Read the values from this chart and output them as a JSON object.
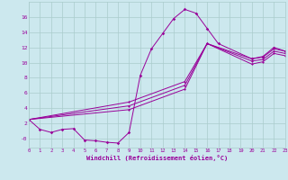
{
  "background_color": "#cce8ee",
  "grid_color": "#aacccc",
  "line_color": "#990099",
  "xlabel": "Windchill (Refroidissement éolien,°C)",
  "xlim": [
    0,
    23
  ],
  "ylim": [
    -1.2,
    18
  ],
  "ytick_vals": [
    0,
    2,
    4,
    6,
    8,
    10,
    12,
    14,
    16
  ],
  "ytick_labels": [
    "-0",
    "2",
    "4",
    "6",
    "8",
    "10",
    "12",
    "14",
    "16"
  ],
  "xtick_vals": [
    0,
    1,
    2,
    3,
    4,
    5,
    6,
    7,
    8,
    9,
    10,
    11,
    12,
    13,
    14,
    15,
    16,
    17,
    18,
    19,
    20,
    21,
    22,
    23
  ],
  "line1_x": [
    0,
    1,
    2,
    3,
    4,
    5,
    6,
    7,
    8,
    9,
    10,
    11,
    12,
    13,
    14,
    15,
    16,
    17,
    20,
    21,
    22,
    23
  ],
  "line1_y": [
    2.5,
    1.2,
    0.8,
    1.2,
    1.3,
    -0.2,
    -0.3,
    -0.5,
    -0.6,
    0.8,
    8.3,
    11.8,
    13.8,
    15.8,
    17.0,
    16.5,
    14.5,
    12.5,
    10.5,
    10.8,
    12.0,
    11.5
  ],
  "line2_x": [
    0,
    9,
    14,
    16,
    20,
    21,
    22,
    23
  ],
  "line2_y": [
    2.5,
    4.8,
    7.5,
    12.5,
    10.5,
    10.7,
    11.8,
    11.5
  ],
  "line3_x": [
    0,
    9,
    14,
    16,
    20,
    21,
    22,
    23
  ],
  "line3_y": [
    2.5,
    4.3,
    7.0,
    12.5,
    10.2,
    10.4,
    11.5,
    11.2
  ],
  "line4_x": [
    0,
    9,
    14,
    16,
    20,
    21,
    22,
    23
  ],
  "line4_y": [
    2.5,
    3.8,
    6.5,
    12.5,
    9.8,
    10.1,
    11.2,
    10.9
  ]
}
